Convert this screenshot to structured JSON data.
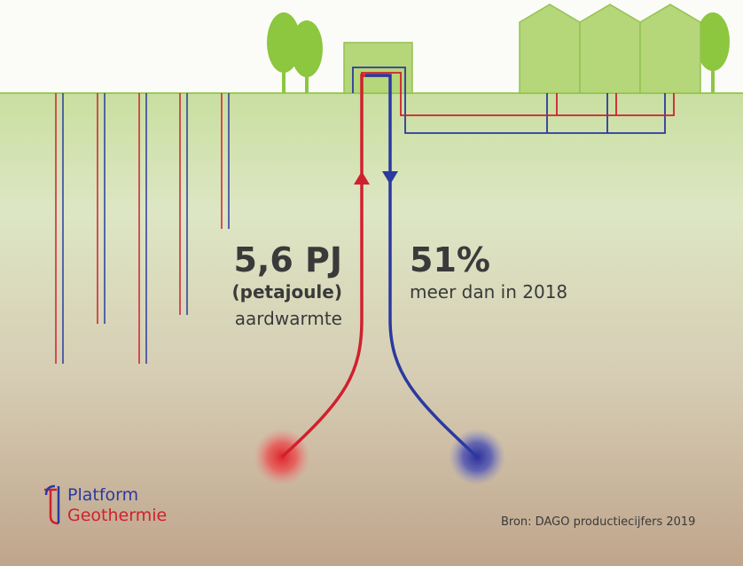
{
  "infographic": {
    "heat": {
      "value": "5,6 PJ",
      "unit": "(petajoule)",
      "label": "aardwarmte"
    },
    "growth": {
      "value": "51%",
      "label": "meer dan in 2018"
    },
    "logo": {
      "line1": "Platform",
      "line2": "Geothermie"
    },
    "source": "Bron: DAGO productiecijfers 2019"
  }
}
